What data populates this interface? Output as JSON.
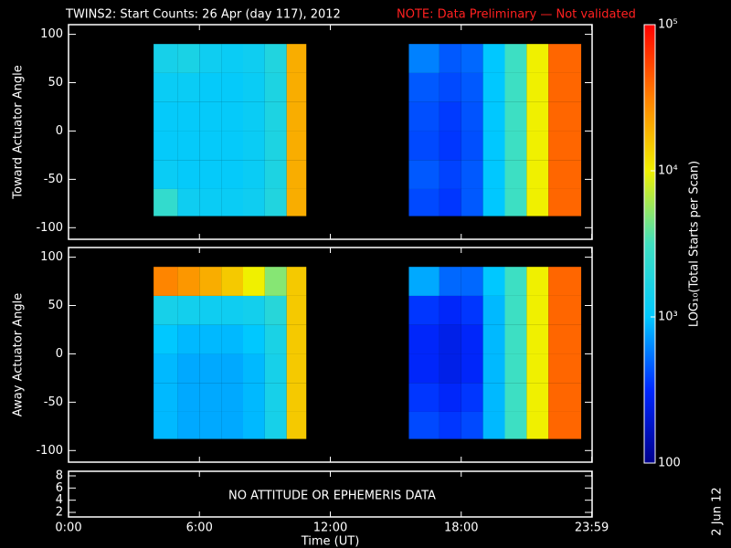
{
  "title": "TWINS2: Start Counts: 26 Apr (day 117), 2012",
  "note": "NOTE: Data Preliminary — Not validated",
  "date_stamp": "2 Jun 12",
  "colorbar": {
    "label": "LOG₁₀(Total Starts per Scan)",
    "log": true,
    "zlim": [
      100,
      100000
    ],
    "ticks": [
      {
        "value": 100,
        "label": "100"
      },
      {
        "value": 1000,
        "label": "10³"
      },
      {
        "value": 10000,
        "label": "10⁴"
      },
      {
        "value": 100000,
        "label": "10⁵"
      }
    ],
    "colormap": [
      "#00008c",
      "#0028ff",
      "#00c8ff",
      "#40e0c0",
      "#f0f000",
      "#ff8000",
      "#ff0000"
    ]
  },
  "chart_data": [
    {
      "type": "heatmap",
      "ylabel": "Toward Actuator Angle",
      "xlim": [
        0,
        24
      ],
      "ylim": [
        -112,
        110
      ],
      "yticks": [
        -100,
        -50,
        0,
        50,
        100
      ],
      "xbins": [
        3.9,
        5,
        6,
        7,
        8,
        9,
        10,
        10.9,
        15.6,
        17,
        18,
        19,
        20,
        21,
        22,
        23.5
      ],
      "ybins": [
        -88,
        -60,
        -30,
        0,
        30,
        60,
        90
      ],
      "values": [
        [
          2500,
          1300,
          1200,
          1200,
          1300,
          1800,
          20000,
          null,
          400,
          350,
          450,
          1000,
          3000,
          10000,
          40000
        ],
        [
          1200,
          1100,
          1100,
          1100,
          1200,
          1700,
          20000,
          null,
          450,
          380,
          450,
          1000,
          3000,
          10000,
          40000
        ],
        [
          1100,
          1100,
          1100,
          1100,
          1200,
          1700,
          20000,
          null,
          400,
          350,
          420,
          1000,
          3000,
          10000,
          40000
        ],
        [
          1100,
          1100,
          1100,
          1100,
          1200,
          1700,
          20000,
          null,
          420,
          360,
          430,
          1000,
          3000,
          10000,
          40000
        ],
        [
          1200,
          1200,
          1100,
          1100,
          1200,
          1700,
          20000,
          null,
          450,
          400,
          450,
          1000,
          3000,
          10000,
          40000
        ],
        [
          1500,
          1600,
          1300,
          1200,
          1300,
          1800,
          20000,
          null,
          600,
          450,
          500,
          1000,
          3000,
          10000,
          40000
        ]
      ]
    },
    {
      "type": "heatmap",
      "ylabel": "Away Actuator Angle",
      "xlim": [
        0,
        24
      ],
      "ylim": [
        -112,
        110
      ],
      "yticks": [
        -100,
        -50,
        0,
        50,
        100
      ],
      "xbins": [
        3.9,
        5,
        6,
        7,
        8,
        9,
        10,
        10.9,
        15.6,
        17,
        18,
        19,
        20,
        21,
        22,
        23.5
      ],
      "ybins": [
        -88,
        -60,
        -30,
        0,
        30,
        60,
        90
      ],
      "values": [
        [
          900,
          800,
          800,
          800,
          900,
          1500,
          15000,
          null,
          400,
          350,
          400,
          900,
          3000,
          10000,
          40000
        ],
        [
          900,
          800,
          800,
          800,
          900,
          1500,
          15000,
          null,
          350,
          300,
          350,
          900,
          3000,
          10000,
          40000
        ],
        [
          900,
          800,
          800,
          800,
          900,
          1500,
          15000,
          null,
          300,
          250,
          300,
          900,
          3000,
          10000,
          40000
        ],
        [
          1000,
          900,
          900,
          900,
          1000,
          1600,
          15000,
          null,
          300,
          250,
          300,
          900,
          3000,
          10000,
          40000
        ],
        [
          1500,
          1400,
          1300,
          1300,
          1400,
          2000,
          15000,
          null,
          350,
          300,
          350,
          900,
          3000,
          10000,
          40000
        ],
        [
          30000,
          25000,
          20000,
          15000,
          10000,
          5000,
          15000,
          null,
          800,
          500,
          500,
          1000,
          3000,
          10000,
          40000
        ]
      ]
    },
    {
      "type": "empty",
      "xlim": [
        0,
        24
      ],
      "ylim": [
        1.25,
        8.75
      ],
      "yticks": [
        2,
        4,
        6,
        8
      ],
      "xticks": [
        {
          "value": 0,
          "label": "0:00"
        },
        {
          "value": 6,
          "label": "6:00"
        },
        {
          "value": 12,
          "label": "12:00"
        },
        {
          "value": 18,
          "label": "18:00"
        },
        {
          "value": 23.983,
          "label": "23:59"
        }
      ],
      "xlabel": "Time (UT)",
      "annotation": "NO ATTITUDE OR EPHEMERIS DATA"
    }
  ]
}
